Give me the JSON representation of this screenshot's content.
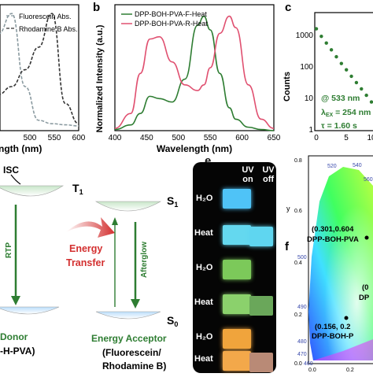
{
  "panel_letters": {
    "b": "b",
    "c": "c",
    "e": "e",
    "f": "f"
  },
  "panel_a": {
    "legend": [
      "Fluorescein Abs.",
      "Rhodamine B Abs."
    ],
    "xlabel": "ngth (nm)",
    "xticks": [
      "500",
      "550",
      "600"
    ]
  },
  "panel_b": {
    "ylabel": "Normalized Intensity (a.u.)",
    "xlabel": "Wavelength (nm)",
    "xticks": [
      "400",
      "450",
      "500",
      "550",
      "600",
      "650"
    ],
    "legend": [
      "DPP-BOH-PVA-F-Heat",
      "DPP-BOH-PVA-R-Heat"
    ]
  },
  "panel_c": {
    "ylabel": "Counts",
    "yticks": [
      "1000",
      "100",
      "10",
      "1"
    ],
    "xticks": [
      "0",
      "5",
      "10"
    ],
    "annot": [
      "@ 533 nm",
      "λ",
      "EX",
      " = 254 nm",
      "τ = 1.60 s"
    ]
  },
  "panel_d": {
    "isc": "ISC",
    "t1": "T",
    "t1_sub": "1",
    "s1": "S",
    "s1_sub": "1",
    "s0": "S",
    "s0_sub": "0",
    "rtp": "RTP",
    "afterglow": "Afterglow",
    "transfer": [
      "Energy",
      "Transfer"
    ],
    "donor": [
      "Donor",
      "-H-PVA)"
    ],
    "acceptor": [
      "Energy Acceptor",
      "(Fluorescein/",
      "Rhodamine B)"
    ]
  },
  "panel_e": {
    "col_headers": [
      [
        "UV",
        "on"
      ],
      [
        "UV",
        "off"
      ]
    ],
    "row_labels": [
      "H₂O",
      "Heat",
      "H₂O",
      "Heat",
      "H₂O",
      "Heat"
    ]
  },
  "panel_f": {
    "wavelengths": [
      "520",
      "540",
      "560",
      "500",
      "490",
      "480",
      "470",
      "460"
    ],
    "y_axis": "y",
    "yticks": [
      "0.8",
      "0.6",
      "0.4",
      "0.2",
      "0.0"
    ],
    "xticks": [
      "0.0",
      "0.2"
    ],
    "points": [
      "(0.301,0.604",
      "DPP-BOH-PVA",
      "(0.156, 0.2",
      "DPP-BOH-P",
      "(0",
      "DP"
    ]
  },
  "chart_data": [
    {
      "type": "line",
      "panel": "a",
      "xlabel": "ngth (nm)",
      "x": [
        440,
        460,
        480,
        500,
        520,
        540,
        560,
        580,
        600
      ],
      "series": [
        {
          "name": "Fluorescein Abs.",
          "values": [
            0.45,
            0.62,
            0.82,
            1.0,
            0.35,
            0.05,
            0.02,
            0.01,
            0.0
          ]
        },
        {
          "name": "Rhodamine B Abs.",
          "values": [
            0.12,
            0.18,
            0.28,
            0.35,
            0.5,
            0.7,
            1.0,
            0.2,
            0.02
          ]
        }
      ],
      "xlim": [
        440,
        600
      ]
    },
    {
      "type": "line",
      "panel": "b",
      "title": "",
      "xlabel": "Wavelength (nm)",
      "ylabel": "Normalized Intensity (a.u.)",
      "x": [
        400,
        425,
        440,
        455,
        470,
        490,
        510,
        530,
        540,
        550,
        565,
        580,
        590,
        610,
        630,
        650
      ],
      "series": [
        {
          "name": "DPP-BOH-PVA-F-Heat",
          "values": [
            0.01,
            0.05,
            0.15,
            0.3,
            0.28,
            0.25,
            0.45,
            0.92,
            1.0,
            0.88,
            0.5,
            0.2,
            0.1,
            0.03,
            0.01,
            0.0
          ]
        },
        {
          "name": "DPP-BOH-PVA-R-Heat",
          "values": [
            0.02,
            0.15,
            0.5,
            0.8,
            0.82,
            0.6,
            0.4,
            0.35,
            0.4,
            0.55,
            0.85,
            1.0,
            0.9,
            0.4,
            0.1,
            0.02
          ]
        }
      ],
      "xlim": [
        400,
        650
      ],
      "ylim": [
        0,
        1.1
      ]
    },
    {
      "type": "scatter",
      "panel": "c",
      "ylabel": "Counts",
      "yscale": "log",
      "ylim": [
        1,
        3000
      ],
      "x": [
        0,
        1,
        2,
        3,
        4,
        5,
        6,
        7,
        8,
        9,
        10,
        11,
        12
      ],
      "values": [
        1000,
        600,
        380,
        240,
        150,
        95,
        62,
        40,
        26,
        17,
        11,
        7,
        5
      ],
      "fit_tau_s": 1.6
    }
  ]
}
